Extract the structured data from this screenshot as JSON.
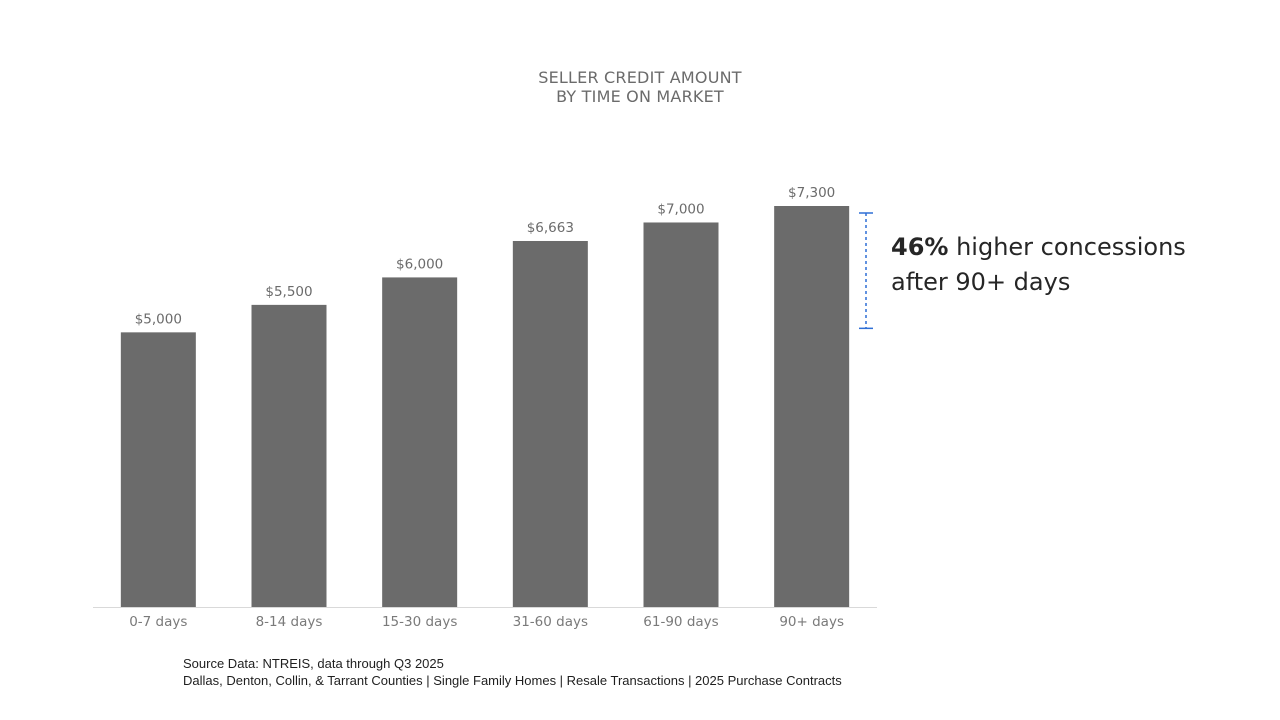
{
  "chart_data": {
    "type": "bar",
    "title_lines": [
      "SELLER CREDIT AMOUNT",
      "BY TIME ON MARKET"
    ],
    "categories": [
      "0-7 days",
      "8-14 days",
      "15-30 days",
      "31-60 days",
      "61-90 days",
      "90+ days"
    ],
    "values": [
      5000,
      5500,
      6000,
      6663,
      7000,
      7300
    ],
    "value_labels": [
      "$5,000",
      "$5,500",
      "$6,000",
      "$6,663",
      "$7,000",
      "$7,300"
    ],
    "ylim": [
      0,
      7300
    ],
    "grid": false,
    "legend": "none",
    "bar_color": "#6b6b6b",
    "bracket_range": [
      5000,
      7300
    ],
    "bracket_color": "#2f6fd6"
  },
  "callout": {
    "percent": "46%",
    "line1_rest": "higher concessions",
    "line2": "after 90+ days"
  },
  "source": {
    "line1": "Source Data:  NTREIS, data through Q3 2025",
    "line2": "Dallas, Denton, Collin, & Tarrant Counties | Single Family Homes | Resale Transactions | 2025 Purchase Contracts"
  }
}
